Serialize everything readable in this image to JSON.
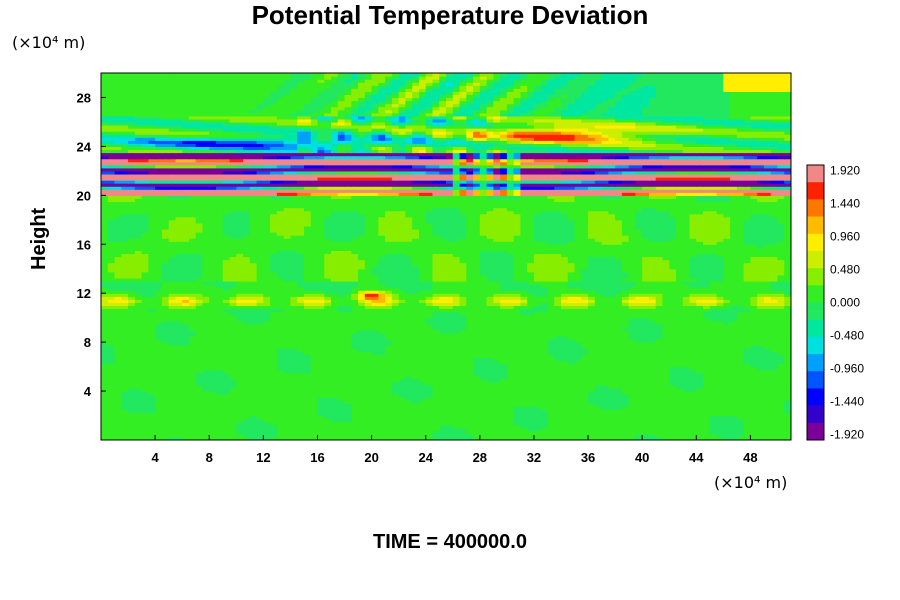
{
  "header": {
    "title": "Potential Temperature Deviation"
  },
  "footer": {
    "time_label": "TIME = 400000.0"
  },
  "colors": {
    "background_field": "#33ee22",
    "frame": "#000000"
  },
  "chart_data": {
    "type": "heatmap",
    "title": "Potential Temperature Deviation",
    "ylabel": "Height",
    "xlabel": "",
    "x_unit_label": "(×10⁴ m)",
    "y_unit_label": "(×10⁴ m)",
    "xlim": [
      0,
      51
    ],
    "ylim": [
      0,
      30
    ],
    "x_ticks": [
      4,
      8,
      12,
      16,
      20,
      24,
      28,
      32,
      36,
      40,
      44,
      48
    ],
    "y_ticks": [
      4,
      8,
      12,
      16,
      20,
      24,
      28
    ],
    "colorbar": {
      "range": [
        -2.0,
        2.0
      ],
      "tick_values": [
        1.92,
        1.44,
        0.96,
        0.48,
        0.0,
        -0.48,
        -0.96,
        -1.44,
        -1.92
      ],
      "tick_labels": [
        "1.920",
        "1.440",
        "0.960",
        "0.480",
        "0.000",
        "-0.480",
        "-0.960",
        "-1.440",
        "-1.920"
      ],
      "palette": [
        "#7a0099",
        "#3300cc",
        "#0000ff",
        "#0055ff",
        "#00a0ff",
        "#00e0e0",
        "#00e8a0",
        "#22e860",
        "#33ee22",
        "#88ee00",
        "#ccee00",
        "#ffee00",
        "#ffbb00",
        "#ff7700",
        "#ff2200",
        "#f08888"
      ]
    },
    "features": [
      {
        "name": "strong oscillating layer",
        "y_range": [
          20,
          23.5
        ],
        "value_range": [
          -1.92,
          1.92
        ]
      },
      {
        "name": "upper wave band",
        "y_range": [
          23.5,
          26.5
        ],
        "value_range": [
          -1.2,
          1.92
        ]
      },
      {
        "name": "gravity wave pattern",
        "y_range": [
          25,
          30
        ],
        "value_range": [
          -0.8,
          0.9
        ]
      },
      {
        "name": "warm patches",
        "y_range": [
          11,
          13
        ],
        "value_range": [
          0.2,
          1.6
        ]
      },
      {
        "name": "near-neutral lower region",
        "y_range": [
          0,
          20
        ],
        "value_range": [
          -0.3,
          0.5
        ]
      }
    ]
  }
}
